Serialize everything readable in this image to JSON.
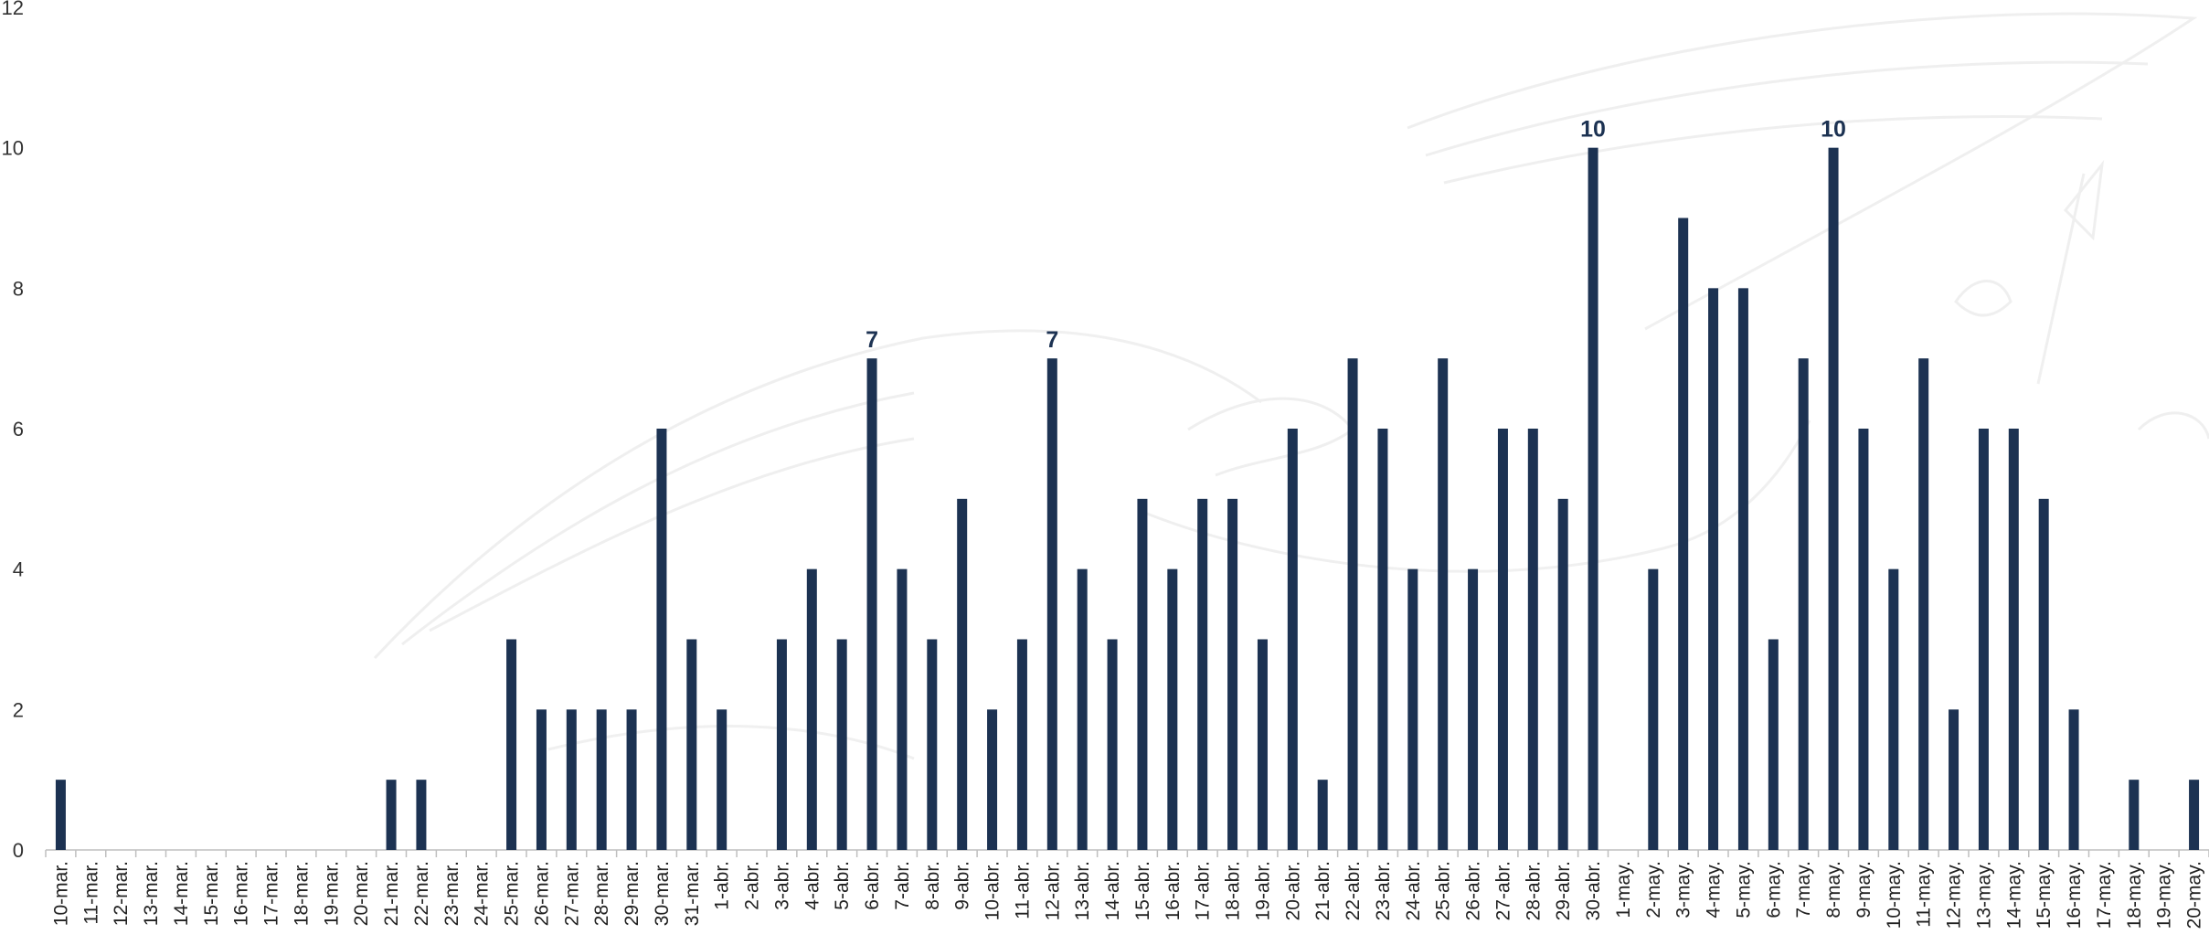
{
  "chart_data": {
    "type": "bar",
    "title": "",
    "xlabel": "",
    "ylabel": "",
    "ylim": [
      0,
      12
    ],
    "yticks": [
      0,
      2,
      4,
      6,
      8,
      10,
      12
    ],
    "grid": false,
    "legend": "none",
    "bar_color": "#1c3252",
    "categories": [
      "10-mar.",
      "11-mar.",
      "12-mar.",
      "13-mar.",
      "14-mar.",
      "15-mar.",
      "16-mar.",
      "17-mar.",
      "18-mar.",
      "19-mar.",
      "20-mar.",
      "21-mar.",
      "22-mar.",
      "23-mar.",
      "24-mar.",
      "25-mar.",
      "26-mar.",
      "27-mar.",
      "28-mar.",
      "29-mar.",
      "30-mar.",
      "31-mar.",
      "1-abr.",
      "2-abr.",
      "3-abr.",
      "4-abr.",
      "5-abr.",
      "6-abr.",
      "7-abr.",
      "8-abr.",
      "9-abr.",
      "10-abr.",
      "11-abr.",
      "12-abr.",
      "13-abr.",
      "14-abr.",
      "15-abr.",
      "16-abr.",
      "17-abr.",
      "18-abr.",
      "19-abr.",
      "20-abr.",
      "21-abr.",
      "22-abr.",
      "23-abr.",
      "24-abr.",
      "25-abr.",
      "26-abr.",
      "27-abr.",
      "28-abr.",
      "29-abr.",
      "30-abr.",
      "1-may.",
      "2-may.",
      "3-may.",
      "4-may.",
      "5-may.",
      "6-may.",
      "7-may.",
      "8-may.",
      "9-may.",
      "10-may.",
      "11-may.",
      "12-may.",
      "13-may.",
      "14-may.",
      "15-may.",
      "16-may.",
      "17-may.",
      "18-may.",
      "19-may.",
      "20-may."
    ],
    "values": [
      1,
      0,
      0,
      0,
      0,
      0,
      0,
      0,
      0,
      0,
      0,
      1,
      1,
      0,
      0,
      3,
      2,
      2,
      2,
      2,
      6,
      3,
      2,
      0,
      3,
      4,
      3,
      7,
      4,
      3,
      5,
      2,
      3,
      7,
      4,
      3,
      5,
      4,
      5,
      5,
      3,
      6,
      1,
      7,
      6,
      4,
      7,
      4,
      6,
      6,
      5,
      10,
      0,
      4,
      9,
      8,
      8,
      3,
      7,
      10,
      6,
      4,
      7,
      2,
      6,
      6,
      5,
      2,
      0,
      1,
      0,
      1
    ],
    "data_labels": [
      {
        "category": "6-abr.",
        "text": "7"
      },
      {
        "category": "12-abr.",
        "text": "7"
      },
      {
        "category": "30-abr.",
        "text": "10"
      },
      {
        "category": "8-may.",
        "text": "10"
      }
    ]
  }
}
